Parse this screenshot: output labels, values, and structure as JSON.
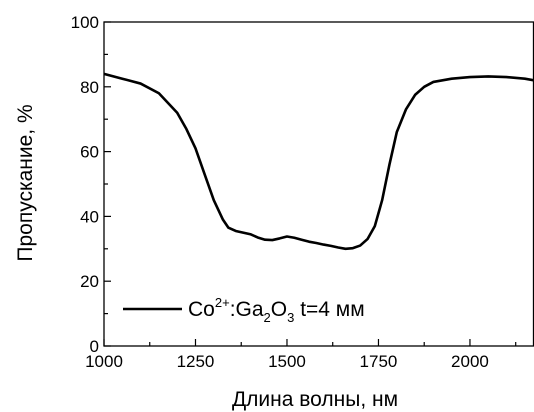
{
  "chart_data": {
    "type": "line",
    "title": "",
    "xlabel": "Длина волны, нм",
    "ylabel": "Пропускание, %",
    "xlim": [
      1000,
      2175
    ],
    "ylim": [
      0,
      100
    ],
    "x_ticks": [
      1000,
      1250,
      1500,
      1750,
      2000
    ],
    "y_ticks": [
      0,
      20,
      40,
      60,
      80,
      100
    ],
    "grid": false,
    "legend_position": "bottom-left",
    "legend": {
      "base1": "Co",
      "sup1": "2+",
      "mid": ":Ga",
      "sub1": "2",
      "mid2": "O",
      "sub2": "3",
      "tail": " t=4 мм"
    },
    "line_color": "#000000",
    "series": [
      {
        "x": [
          1000,
          1050,
          1100,
          1150,
          1200,
          1225,
          1250,
          1275,
          1300,
          1325,
          1340,
          1360,
          1380,
          1400,
          1420,
          1440,
          1460,
          1480,
          1500,
          1520,
          1540,
          1560,
          1580,
          1600,
          1620,
          1640,
          1660,
          1680,
          1700,
          1720,
          1740,
          1760,
          1780,
          1800,
          1825,
          1850,
          1875,
          1900,
          1950,
          2000,
          2050,
          2100,
          2150,
          2175
        ],
        "y": [
          84,
          82.5,
          81,
          78,
          72,
          67,
          61,
          53,
          45,
          39,
          36.5,
          35.5,
          35,
          34.5,
          33.5,
          32.8,
          32.7,
          33.2,
          33.8,
          33.4,
          32.8,
          32.2,
          31.8,
          31.3,
          30.9,
          30.4,
          30,
          30.2,
          31,
          33,
          37,
          45,
          56,
          66,
          73,
          77.5,
          80,
          81.5,
          82.5,
          83,
          83.2,
          83,
          82.5,
          82
        ]
      }
    ]
  }
}
